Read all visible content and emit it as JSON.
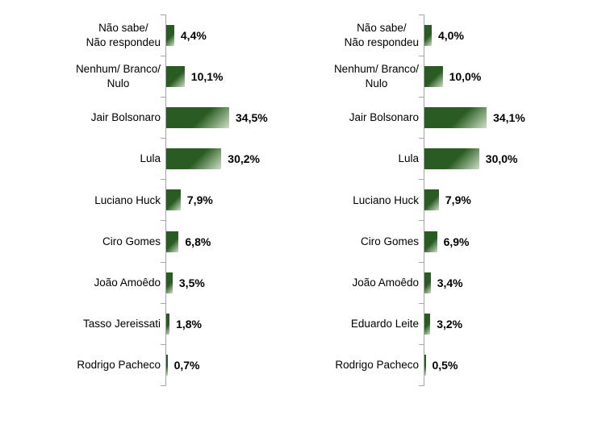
{
  "page": {
    "background_color": "#ffffff"
  },
  "chart_data": [
    {
      "type": "bar",
      "orientation": "horizontal",
      "title": "",
      "xlabel": "",
      "ylabel": "",
      "grid": false,
      "legend": false,
      "xlim": [
        0,
        40
      ],
      "categories": [
        "Não sabe/\nNão respondeu",
        "Nenhum/ Branco/\nNulo",
        "Jair Bolsonaro",
        "Lula",
        "Luciano Huck",
        "Ciro Gomes",
        "João Amoêdo",
        "Tasso Jereissati",
        "Rodrigo Pacheco"
      ],
      "values": [
        4.4,
        10.1,
        34.5,
        30.2,
        7.9,
        6.8,
        3.5,
        1.8,
        0.7
      ],
      "value_labels": [
        "4,4%",
        "10,1%",
        "34,5%",
        "30,2%",
        "7,9%",
        "6,8%",
        "3,5%",
        "1,8%",
        "0,7%"
      ],
      "bar_color": "#2a5b22",
      "bar_highlight_color": "#cde0c6",
      "axis_color": "#a3a3ab",
      "text_color": "#000000"
    },
    {
      "type": "bar",
      "orientation": "horizontal",
      "title": "",
      "xlabel": "",
      "ylabel": "",
      "grid": false,
      "legend": false,
      "xlim": [
        0,
        40
      ],
      "categories": [
        "Não sabe/\nNão respondeu",
        "Nenhum/ Branco/\nNulo",
        "Jair Bolsonaro",
        "Lula",
        "Luciano Huck",
        "Ciro Gomes",
        "João Amoêdo",
        "Eduardo Leite",
        "Rodrigo Pacheco"
      ],
      "values": [
        4.0,
        10.0,
        34.1,
        30.0,
        7.9,
        6.9,
        3.4,
        3.2,
        0.5
      ],
      "value_labels": [
        "4,0%",
        "10,0%",
        "34,1%",
        "30,0%",
        "7,9%",
        "6,9%",
        "3,4%",
        "3,2%",
        "0,5%"
      ],
      "bar_color": "#2a5b22",
      "bar_highlight_color": "#cde0c6",
      "axis_color": "#a3a3ab",
      "text_color": "#000000"
    }
  ]
}
